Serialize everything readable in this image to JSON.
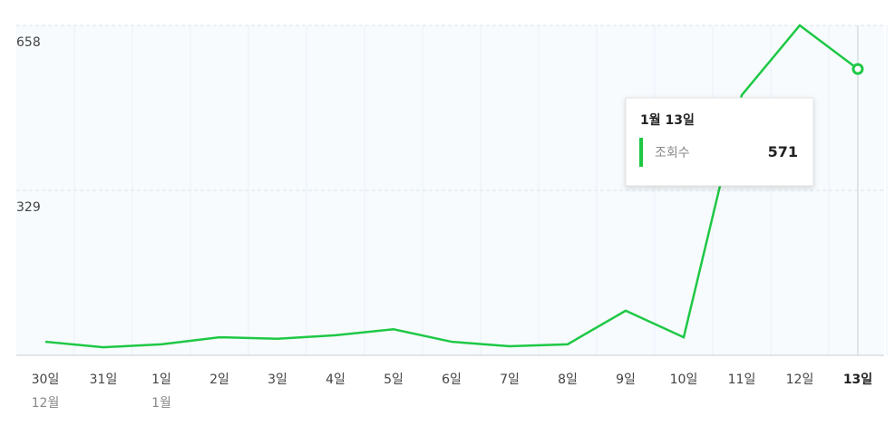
{
  "chart_data": {
    "type": "line",
    "categories": [
      "30일",
      "31일",
      "1일",
      "2일",
      "3일",
      "4일",
      "5일",
      "6일",
      "7일",
      "8일",
      "9일",
      "10일",
      "11일",
      "12일",
      "13일"
    ],
    "month_labels": [
      "12월",
      null,
      "1월",
      null,
      null,
      null,
      null,
      null,
      null,
      null,
      null,
      null,
      null,
      null,
      null
    ],
    "series": [
      {
        "name": "조회수",
        "color": "#1ec845",
        "values": [
          27,
          16,
          22,
          36,
          33,
          40,
          52,
          27,
          18,
          22,
          89,
          36,
          519,
          658,
          571
        ]
      }
    ],
    "ylim": [
      0,
      658
    ],
    "yticks": [
      329,
      658
    ],
    "grid": true,
    "tooltip": {
      "title": "1월 13일"
    }
  }
}
